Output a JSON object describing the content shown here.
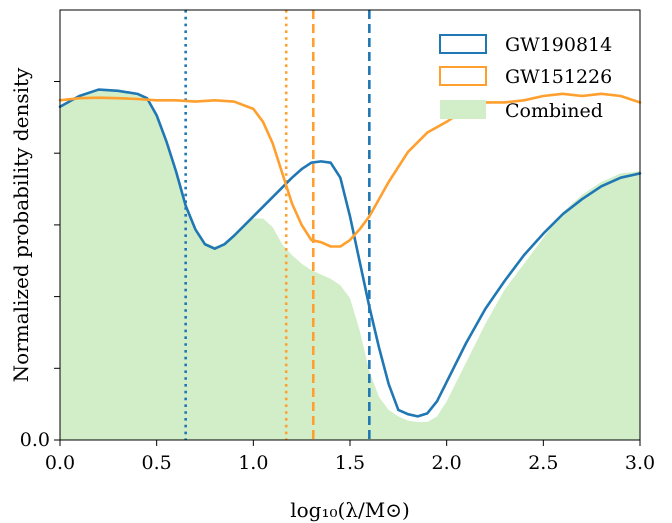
{
  "chart_data": {
    "type": "area",
    "xlabel": "log₁₀(λ/M⊙)",
    "ylabel": "Normalized probability density",
    "xlim": [
      0.0,
      3.0
    ],
    "ylim": [
      0.0,
      1.0
    ],
    "x_ticks": [
      "0.0",
      "0.5",
      "1.0",
      "1.5",
      "2.0",
      "2.5",
      "3.0"
    ],
    "y_ticks": [
      "0.0"
    ],
    "legend": {
      "placement": "top-right",
      "entries": [
        "GW190814",
        "GW151226",
        "Combined"
      ]
    },
    "colors": {
      "GW190814": "#1f77b4",
      "GW151226": "#ff9f2e",
      "Combined": "#d2eec8"
    },
    "grid": false,
    "series": [
      {
        "name": "GW190814",
        "style": "line",
        "x": [
          0.0,
          0.1,
          0.2,
          0.3,
          0.4,
          0.45,
          0.5,
          0.55,
          0.6,
          0.65,
          0.7,
          0.75,
          0.8,
          0.85,
          0.9,
          1.0,
          1.1,
          1.2,
          1.25,
          1.3,
          1.35,
          1.4,
          1.45,
          1.5,
          1.55,
          1.6,
          1.65,
          1.7,
          1.75,
          1.8,
          1.85,
          1.9,
          1.95,
          2.0,
          2.1,
          2.2,
          2.3,
          2.4,
          2.5,
          2.6,
          2.7,
          2.8,
          2.9,
          3.0
        ],
        "y": [
          0.775,
          0.8,
          0.815,
          0.812,
          0.805,
          0.795,
          0.755,
          0.695,
          0.625,
          0.545,
          0.49,
          0.455,
          0.445,
          0.455,
          0.475,
          0.52,
          0.565,
          0.61,
          0.63,
          0.645,
          0.648,
          0.645,
          0.61,
          0.52,
          0.415,
          0.31,
          0.215,
          0.13,
          0.07,
          0.06,
          0.055,
          0.062,
          0.09,
          0.135,
          0.225,
          0.305,
          0.37,
          0.43,
          0.48,
          0.525,
          0.56,
          0.59,
          0.61,
          0.62
        ]
      },
      {
        "name": "GW151226",
        "style": "line",
        "x": [
          0.0,
          0.1,
          0.2,
          0.3,
          0.4,
          0.5,
          0.6,
          0.7,
          0.8,
          0.9,
          1.0,
          1.05,
          1.1,
          1.15,
          1.2,
          1.25,
          1.3,
          1.35,
          1.4,
          1.45,
          1.5,
          1.55,
          1.6,
          1.65,
          1.7,
          1.8,
          1.9,
          2.0,
          2.1,
          2.2,
          2.3,
          2.4,
          2.5,
          2.6,
          2.7,
          2.8,
          2.9,
          3.0
        ],
        "y": [
          0.79,
          0.795,
          0.796,
          0.795,
          0.793,
          0.79,
          0.79,
          0.787,
          0.79,
          0.787,
          0.77,
          0.74,
          0.69,
          0.62,
          0.55,
          0.5,
          0.465,
          0.46,
          0.45,
          0.45,
          0.465,
          0.49,
          0.52,
          0.56,
          0.6,
          0.67,
          0.715,
          0.74,
          0.77,
          0.785,
          0.785,
          0.79,
          0.8,
          0.805,
          0.8,
          0.805,
          0.8,
          0.785
        ]
      },
      {
        "name": "Combined",
        "style": "area",
        "x": [
          0.0,
          0.1,
          0.2,
          0.3,
          0.4,
          0.45,
          0.5,
          0.55,
          0.6,
          0.65,
          0.7,
          0.75,
          0.8,
          0.85,
          0.9,
          0.95,
          1.0,
          1.05,
          1.1,
          1.15,
          1.2,
          1.25,
          1.3,
          1.35,
          1.4,
          1.45,
          1.5,
          1.55,
          1.6,
          1.65,
          1.7,
          1.75,
          1.8,
          1.85,
          1.9,
          1.95,
          2.0,
          2.1,
          2.2,
          2.3,
          2.4,
          2.5,
          2.6,
          2.7,
          2.8,
          2.9,
          3.0
        ],
        "y": [
          0.775,
          0.8,
          0.815,
          0.815,
          0.805,
          0.795,
          0.755,
          0.695,
          0.62,
          0.54,
          0.49,
          0.46,
          0.45,
          0.455,
          0.475,
          0.5,
          0.515,
          0.515,
          0.495,
          0.455,
          0.43,
          0.41,
          0.395,
          0.385,
          0.375,
          0.36,
          0.33,
          0.255,
          0.16,
          0.1,
          0.07,
          0.055,
          0.045,
          0.042,
          0.042,
          0.055,
          0.09,
          0.18,
          0.27,
          0.35,
          0.41,
          0.47,
          0.53,
          0.57,
          0.6,
          0.62,
          0.625
        ]
      }
    ],
    "vertical_lines": [
      {
        "series": "GW190814",
        "x": 0.65,
        "style": "dotted"
      },
      {
        "series": "GW190814",
        "x": 1.6,
        "style": "dashed"
      },
      {
        "series": "GW151226",
        "x": 1.17,
        "style": "dotted"
      },
      {
        "series": "GW151226",
        "x": 1.31,
        "style": "dashed"
      }
    ]
  }
}
